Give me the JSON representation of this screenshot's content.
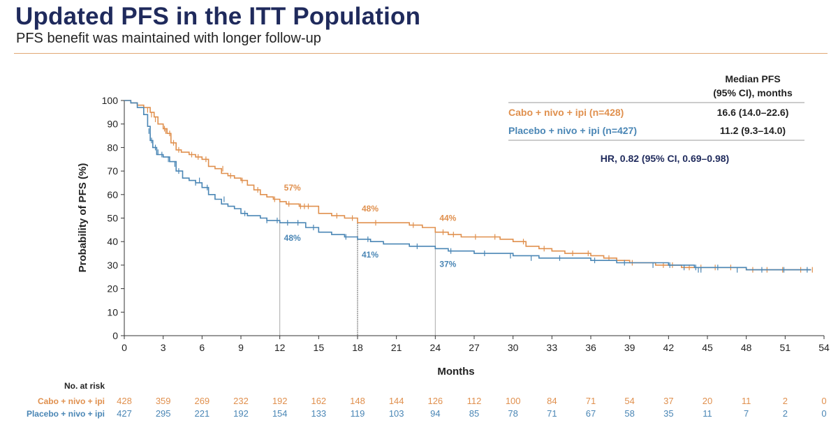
{
  "slide": {
    "title": "Updated PFS in the ITT Population",
    "subtitle": "PFS benefit was maintained with longer follow-up"
  },
  "colors": {
    "cabo": "#e0904e",
    "placebo": "#4a86b5",
    "title": "#1f2a5c",
    "accent_rule": "#e2a774",
    "text": "#222222"
  },
  "chart_data": {
    "type": "line",
    "subtype": "kaplan-meier",
    "xlabel": "Months",
    "ylabel": "Probability of PFS (%)",
    "xlim": [
      0,
      54
    ],
    "ylim": [
      0,
      100
    ],
    "x_ticks": [
      0,
      3,
      6,
      9,
      12,
      15,
      18,
      21,
      24,
      27,
      30,
      33,
      36,
      39,
      42,
      45,
      48,
      51,
      54
    ],
    "y_ticks": [
      0,
      10,
      20,
      30,
      40,
      50,
      60,
      70,
      80,
      90,
      100
    ],
    "series": [
      {
        "name": "Cabo + nivo + ipi (n=428)",
        "color": "#e0904e",
        "x": [
          0,
          0.5,
          1,
          1.5,
          2,
          2.3,
          2.6,
          3,
          3.3,
          3.6,
          4,
          4.4,
          5,
          5.5,
          6,
          6.5,
          7,
          7.5,
          8,
          8.5,
          9,
          9.5,
          10,
          10.5,
          11,
          11.5,
          12,
          12.5,
          13,
          13.5,
          14,
          15,
          16,
          17,
          18,
          19,
          20,
          21,
          22,
          23,
          24,
          25,
          26,
          27,
          28,
          29,
          30,
          31,
          32,
          33,
          34,
          35,
          36,
          37,
          38,
          39,
          40,
          41,
          42,
          43,
          44,
          45,
          46,
          47,
          48,
          49,
          50,
          51,
          52,
          53
        ],
        "y": [
          100,
          99,
          98,
          97,
          95,
          93,
          90,
          88,
          86,
          82,
          79,
          78,
          77,
          76,
          75,
          72,
          71,
          69,
          68,
          67,
          66,
          64,
          62,
          60,
          59,
          58,
          57,
          56,
          56,
          55,
          55,
          52,
          51,
          50,
          48,
          48,
          48,
          48,
          47,
          46,
          44,
          43,
          42,
          42,
          42,
          41,
          40,
          38,
          37,
          36,
          35,
          35,
          34,
          33,
          32,
          31,
          31,
          30,
          30,
          29,
          29,
          29,
          29,
          29,
          28,
          28,
          28,
          28,
          28,
          28
        ],
        "censor_x": [
          1.8,
          2.1,
          2.4,
          3.1,
          3.2,
          3.5,
          3.8,
          4.2,
          5.2,
          5.7,
          6.3,
          7.6,
          8.2,
          9.1,
          10.3,
          11.6,
          12.7,
          13.6,
          13.9,
          14.2,
          16.4,
          17.6,
          19.4,
          22.3,
          24.6,
          25.4,
          27.1,
          28.6,
          30.8,
          32.4,
          34.6,
          35.8,
          37.4,
          39.2,
          41.6,
          42.3,
          43.6,
          44.5,
          45.6,
          46.8,
          48.5,
          49.6,
          50.8,
          52.2,
          53.1
        ],
        "censor_y": [
          96,
          94,
          92,
          88,
          87,
          86,
          82,
          79,
          77,
          76,
          75,
          71,
          68,
          66,
          62,
          58,
          56,
          55,
          55,
          55,
          51,
          50,
          48,
          47,
          44,
          43,
          42,
          42,
          40,
          37,
          35,
          35,
          33,
          31,
          30,
          30,
          29,
          29,
          29,
          29,
          28,
          28,
          28,
          28,
          28
        ],
        "milestones": [
          {
            "month": 12,
            "value": 57,
            "label": "57%"
          },
          {
            "month": 18,
            "value": 48,
            "label": "48%"
          },
          {
            "month": 24,
            "value": 44,
            "label": "44%"
          }
        ]
      },
      {
        "name": "Placebo + nivo + ipi (n=427)",
        "color": "#4a86b5",
        "x": [
          0,
          0.5,
          1,
          1.5,
          1.8,
          2,
          2.2,
          2.5,
          3,
          3.5,
          4,
          4.5,
          5,
          5.5,
          6,
          6.5,
          7,
          7.5,
          8,
          8.5,
          9,
          9.5,
          10,
          10.5,
          11,
          11.5,
          12,
          13,
          14,
          15,
          16,
          17,
          18,
          19,
          20,
          21,
          22,
          23,
          24,
          25,
          26,
          27,
          28,
          30,
          32,
          34,
          36,
          38,
          40,
          42,
          44,
          46,
          48,
          50,
          52,
          53
        ],
        "y": [
          100,
          99,
          97,
          94,
          89,
          83,
          80,
          77,
          76,
          74,
          70,
          67,
          66,
          65,
          63,
          60,
          58,
          56,
          55,
          54,
          52,
          51,
          51,
          50,
          49,
          49,
          48,
          48,
          46,
          44,
          43,
          42,
          41,
          40,
          39,
          39,
          38,
          38,
          37,
          36,
          36,
          35,
          35,
          34,
          33,
          33,
          32,
          31,
          31,
          30,
          29,
          29,
          28,
          28,
          28,
          28
        ],
        "censor_x": [
          1.5,
          1.9,
          2.0,
          2.1,
          2.2,
          2.4,
          2.6,
          2.9,
          3.4,
          3.9,
          4.2,
          5.5,
          5.8,
          6.4,
          7.7,
          9.3,
          11.0,
          11.8,
          12.6,
          13.4,
          14.6,
          17.1,
          18.8,
          22.6,
          25.2,
          27.8,
          29.8,
          31.4,
          33.6,
          36.3,
          38.6,
          40.8,
          42.1,
          43.2,
          44.1,
          44.3,
          44.5,
          45.8,
          47.3,
          49.2,
          50.9,
          52.7
        ],
        "censor_y": [
          95,
          87,
          85,
          83,
          82,
          80,
          78,
          77,
          75,
          73,
          70,
          65,
          66,
          63,
          58,
          52,
          49,
          49,
          48,
          48,
          46,
          42,
          41,
          38,
          36,
          35,
          34,
          33,
          33,
          32,
          31,
          30,
          30,
          29,
          29,
          28,
          28,
          29,
          28,
          28,
          28,
          28
        ],
        "milestones": [
          {
            "month": 12,
            "value": 48,
            "label": "48%"
          },
          {
            "month": 18,
            "value": 41,
            "label": "41%"
          },
          {
            "month": 24,
            "value": 37,
            "label": "37%"
          }
        ]
      }
    ],
    "legend_table": {
      "header_line1": "Median PFS",
      "header_line2": "(95% CI), months",
      "rows": [
        {
          "label": "Cabo + nivo + ipi (n=428)",
          "value": "16.6 (14.0–22.6)"
        },
        {
          "label": "Placebo + nivo + ipi (n=427)",
          "value": "11.2 (9.3–14.0)"
        }
      ],
      "hr_text": "HR, 0.82 (95% CI, 0.69–0.98)"
    },
    "risk_table": {
      "title": "No. at risk",
      "rows": [
        {
          "label": "Cabo + nivo + ipi",
          "values": [
            428,
            359,
            269,
            232,
            192,
            162,
            148,
            144,
            126,
            112,
            100,
            84,
            71,
            54,
            37,
            20,
            11,
            2,
            0
          ]
        },
        {
          "label": "Placebo + nivo + ipi",
          "values": [
            427,
            295,
            221,
            192,
            154,
            133,
            119,
            103,
            94,
            85,
            78,
            71,
            67,
            58,
            35,
            11,
            7,
            2,
            0
          ]
        }
      ]
    }
  }
}
